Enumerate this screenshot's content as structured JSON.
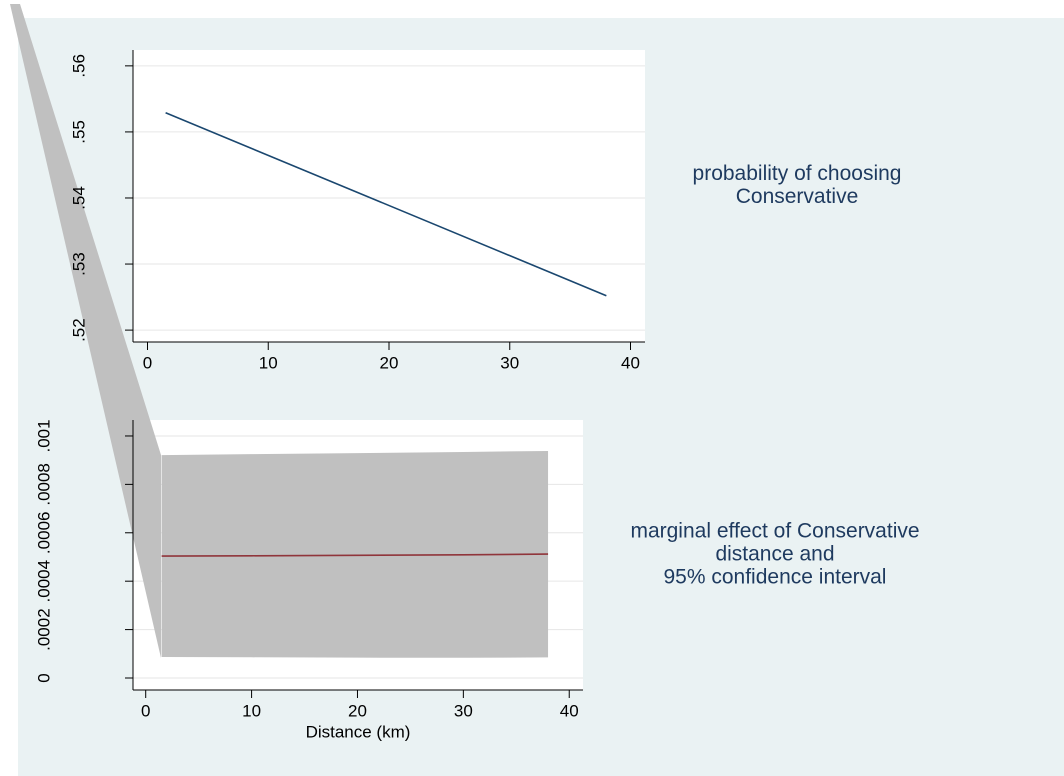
{
  "chart_data": [
    {
      "type": "line",
      "x": [
        1.5,
        38
      ],
      "series": [
        {
          "color": "#1a476f",
          "values": [
            0.5529,
            0.5252
          ]
        }
      ],
      "xlim": [
        -1.2,
        41.2
      ],
      "ylim": [
        0.5182,
        0.5624
      ],
      "xticks": [
        0,
        10,
        20,
        30,
        40
      ],
      "yticks": [
        {
          "value": 0.52,
          "label": ".52"
        },
        {
          "value": 0.53,
          "label": ".53"
        },
        {
          "value": 0.54,
          "label": ".54"
        },
        {
          "value": 0.55,
          "label": ".55"
        },
        {
          "value": 0.56,
          "label": ".56"
        }
      ],
      "grid": true,
      "annotation": [
        "probability of choosing",
        "Conservative"
      ]
    },
    {
      "type": "line",
      "x": [
        1.5,
        10,
        20,
        30,
        38
      ],
      "series": [
        {
          "color": "#90353b",
          "values": [
            0.000504,
            0.000505,
            0.000507,
            0.000509,
            0.000512
          ],
          "lower": [
            8.68e-05,
            8.55e-05,
            8.4e-05,
            8.35e-05,
            8.5e-05
          ],
          "upper": [
            0.000921,
            0.000925,
            0.000929,
            0.000934,
            0.000938
          ],
          "band_color": "#c0c0c0"
        }
      ],
      "xlim": [
        -1.2,
        41.3
      ],
      "ylim": [
        -4.96e-05,
        0.001066
      ],
      "xticks": [
        0,
        10,
        20,
        30,
        40
      ],
      "yticks": [
        0,
        {
          "value": 0.0002,
          "label": ".0002"
        },
        {
          "value": 0.0004,
          "label": ".0004"
        },
        {
          "value": 0.0006,
          "label": ".0006"
        },
        {
          "value": 0.0008,
          "label": ".0008"
        },
        {
          "value": 0.001,
          "label": ".001"
        }
      ],
      "grid": true,
      "xlabel": "Distance (km)",
      "annotation": [
        "marginal effect of Conservative",
        "distance and",
        "95% confidence interval"
      ]
    }
  ]
}
